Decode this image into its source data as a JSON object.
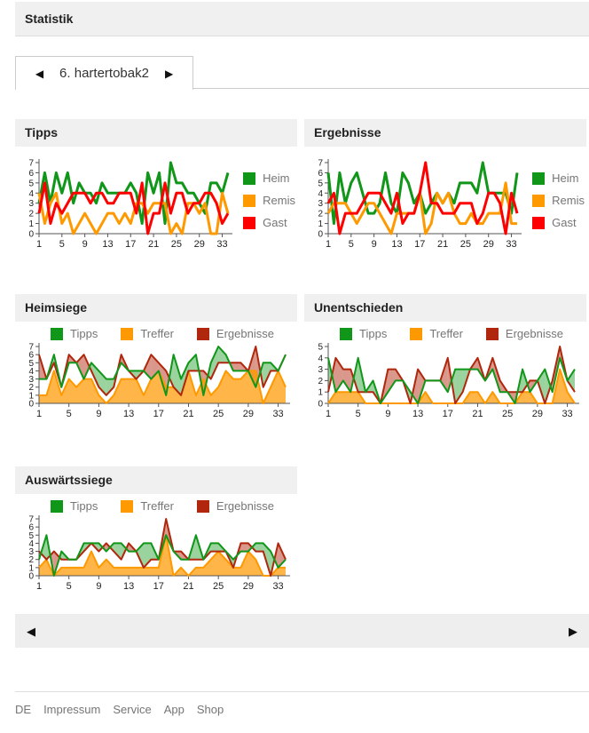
{
  "page": {
    "title": "Statistik"
  },
  "tab": {
    "prev_icon": "◀",
    "next_icon": "▶",
    "current": "6. hartertobak2"
  },
  "pager": {
    "prev_icon": "◀",
    "next_icon": "▶"
  },
  "footer": {
    "links": [
      "DE",
      "Impressum",
      "Service",
      "App",
      "Shop"
    ]
  },
  "colors": {
    "green": "#109618",
    "orange": "#ff9900",
    "red": "#ff0000",
    "brick": "#b0270d",
    "header_bg": "#f0f0f0",
    "border": "#dddddd",
    "muted_text": "#757575"
  },
  "chart_data": [
    {
      "type": "line",
      "title": "Tipps",
      "x_start": 1,
      "x_ticks": [
        1,
        5,
        9,
        13,
        17,
        21,
        25,
        29,
        33
      ],
      "ylim": [
        0,
        7
      ],
      "grid": false,
      "legend_position": "right",
      "series": [
        {
          "name": "Heim",
          "color": "#109618",
          "values": [
            3,
            6,
            3,
            6,
            4,
            6,
            3,
            5,
            4,
            4,
            3,
            5,
            4,
            4,
            4,
            4,
            5,
            4,
            1,
            6,
            4,
            6,
            1,
            7,
            5,
            5,
            4,
            4,
            3,
            2,
            5,
            5,
            4,
            6
          ]
        },
        {
          "name": "Remis",
          "color": "#ff9900",
          "values": [
            4,
            1,
            3,
            4,
            1,
            2,
            0,
            1,
            2,
            1,
            0,
            1,
            2,
            2,
            1,
            2,
            1,
            3,
            3,
            2,
            3,
            3,
            3,
            0,
            1,
            0,
            3,
            3,
            2,
            3,
            0,
            0,
            4,
            2
          ]
        },
        {
          "name": "Gast",
          "color": "#ff0000",
          "values": [
            2,
            5,
            1,
            3,
            2,
            3,
            4,
            4,
            4,
            3,
            4,
            4,
            3,
            3,
            4,
            4,
            4,
            2,
            5,
            0,
            2,
            2,
            5,
            2,
            4,
            4,
            2,
            3,
            3,
            4,
            4,
            3,
            1,
            2
          ]
        }
      ]
    },
    {
      "type": "line",
      "title": "Ergebnisse",
      "x_start": 1,
      "x_ticks": [
        1,
        5,
        9,
        13,
        17,
        21,
        25,
        29,
        33
      ],
      "ylim": [
        0,
        7
      ],
      "grid": false,
      "legend_position": "right",
      "series": [
        {
          "name": "Heim",
          "color": "#109618",
          "values": [
            6,
            1,
            6,
            3,
            5,
            6,
            4,
            2,
            2,
            3,
            6,
            3,
            2,
            6,
            5,
            3,
            4,
            2,
            3,
            4,
            3,
            4,
            3,
            5,
            5,
            5,
            4,
            7,
            4,
            4,
            4,
            4,
            2,
            6
          ]
        },
        {
          "name": "Remis",
          "color": "#ff9900",
          "values": [
            2,
            3,
            3,
            3,
            2,
            1,
            2,
            3,
            3,
            2,
            1,
            0,
            2,
            2,
            2,
            2,
            4,
            0,
            1,
            4,
            3,
            4,
            2,
            1,
            1,
            2,
            1,
            1,
            2,
            2,
            2,
            5,
            1,
            1
          ]
        },
        {
          "name": "Gast",
          "color": "#ff0000",
          "values": [
            3,
            4,
            0,
            2,
            2,
            2,
            3,
            4,
            4,
            4,
            3,
            2,
            4,
            1,
            2,
            2,
            4,
            7,
            3,
            3,
            2,
            2,
            2,
            3,
            3,
            3,
            1,
            2,
            4,
            4,
            3,
            0,
            4,
            2
          ]
        }
      ]
    },
    {
      "type": "area",
      "title": "Heimsiege",
      "x_start": 1,
      "x_ticks": [
        1,
        5,
        9,
        13,
        17,
        21,
        25,
        29,
        33
      ],
      "ylim": [
        0,
        7
      ],
      "grid": false,
      "legend_position": "top",
      "fills": {
        "tipps": "rgba(16,150,24,0.42)",
        "treffer": "rgba(255,153,0,0.72)",
        "ergebnisse": "rgba(176,39,13,0.48)"
      },
      "series": [
        {
          "name": "Tipps",
          "color": "#109618",
          "values": [
            3,
            3,
            6,
            2,
            5,
            5,
            3,
            5,
            4,
            3,
            3,
            5,
            4,
            4,
            4,
            3,
            4,
            1,
            6,
            3,
            5,
            6,
            1,
            5,
            7,
            6,
            4,
            4,
            4,
            2,
            5,
            5,
            4,
            6
          ]
        },
        {
          "name": "Treffer",
          "color": "#ff9900",
          "values": [
            1,
            1,
            4,
            1,
            3,
            2,
            3,
            3,
            1,
            0,
            1,
            3,
            3,
            3,
            1,
            3,
            4,
            2,
            2,
            1,
            4,
            1,
            3,
            1,
            2,
            4,
            3,
            3,
            4,
            4,
            0,
            2,
            4,
            2
          ]
        },
        {
          "name": "Ergebnisse",
          "color": "#b0270d",
          "values": [
            6,
            3,
            5,
            2,
            6,
            5,
            6,
            4,
            2,
            1,
            2,
            6,
            4,
            3,
            4,
            6,
            5,
            4,
            2,
            1,
            4,
            4,
            4,
            3,
            5,
            5,
            5,
            5,
            4,
            7,
            2,
            4,
            4,
            6
          ]
        }
      ]
    },
    {
      "type": "area",
      "title": "Unentschieden",
      "x_start": 1,
      "x_ticks": [
        1,
        5,
        9,
        13,
        17,
        21,
        25,
        29,
        33
      ],
      "ylim": [
        0,
        5
      ],
      "grid": false,
      "legend_position": "top",
      "fills": {
        "tipps": "rgba(16,150,24,0.42)",
        "treffer": "rgba(255,153,0,0.72)",
        "ergebnisse": "rgba(176,39,13,0.48)"
      },
      "series": [
        {
          "name": "Tipps",
          "color": "#109618",
          "values": [
            4,
            1,
            2,
            1,
            4,
            1,
            2,
            0,
            1,
            2,
            2,
            1,
            0,
            2,
            2,
            2,
            1,
            3,
            3,
            3,
            3,
            2,
            3,
            1,
            1,
            0,
            3,
            1,
            2,
            3,
            1,
            4,
            2,
            3
          ]
        },
        {
          "name": "Treffer",
          "color": "#ff9900",
          "values": [
            0,
            1,
            1,
            1,
            1,
            0,
            0,
            0,
            0,
            0,
            0,
            0,
            0,
            1,
            0,
            0,
            0,
            0,
            0,
            1,
            1,
            0,
            1,
            0,
            0,
            0,
            1,
            1,
            0,
            0,
            0,
            3,
            1,
            0
          ]
        },
        {
          "name": "Ergebnisse",
          "color": "#b0270d",
          "values": [
            1,
            4,
            3,
            3,
            1,
            1,
            1,
            0,
            3,
            3,
            2,
            0,
            3,
            2,
            2,
            2,
            4,
            0,
            1,
            3,
            4,
            2,
            4,
            2,
            1,
            1,
            1,
            2,
            2,
            0,
            2,
            5,
            2,
            1
          ]
        }
      ]
    },
    {
      "type": "area",
      "title": "Auswärtssiege",
      "x_start": 1,
      "x_ticks": [
        1,
        5,
        9,
        13,
        17,
        21,
        25,
        29,
        33
      ],
      "ylim": [
        0,
        7
      ],
      "grid": false,
      "legend_position": "top",
      "fills": {
        "tipps": "rgba(16,150,24,0.42)",
        "treffer": "rgba(255,153,0,0.72)",
        "ergebnisse": "rgba(176,39,13,0.48)"
      },
      "series": [
        {
          "name": "Tipps",
          "color": "#109618",
          "values": [
            2,
            5,
            0,
            3,
            2,
            2,
            4,
            4,
            4,
            3,
            4,
            4,
            3,
            3,
            4,
            4,
            2,
            5,
            3,
            2,
            2,
            5,
            2,
            4,
            4,
            3,
            2,
            3,
            3,
            4,
            4,
            3,
            1,
            2
          ]
        },
        {
          "name": "Treffer",
          "color": "#ff9900",
          "values": [
            1,
            2,
            0,
            1,
            1,
            1,
            1,
            3,
            1,
            2,
            1,
            1,
            1,
            1,
            1,
            1,
            1,
            5,
            0,
            1,
            0,
            1,
            1,
            2,
            3,
            2,
            1,
            1,
            3,
            2,
            0,
            0,
            1,
            1
          ]
        },
        {
          "name": "Ergebnisse",
          "color": "#b0270d",
          "values": [
            3,
            2,
            3,
            2,
            2,
            2,
            3,
            4,
            3,
            4,
            3,
            2,
            4,
            3,
            1,
            2,
            2,
            7,
            3,
            3,
            2,
            2,
            2,
            3,
            3,
            3,
            1,
            4,
            4,
            3,
            3,
            0,
            4,
            2
          ]
        }
      ]
    }
  ]
}
